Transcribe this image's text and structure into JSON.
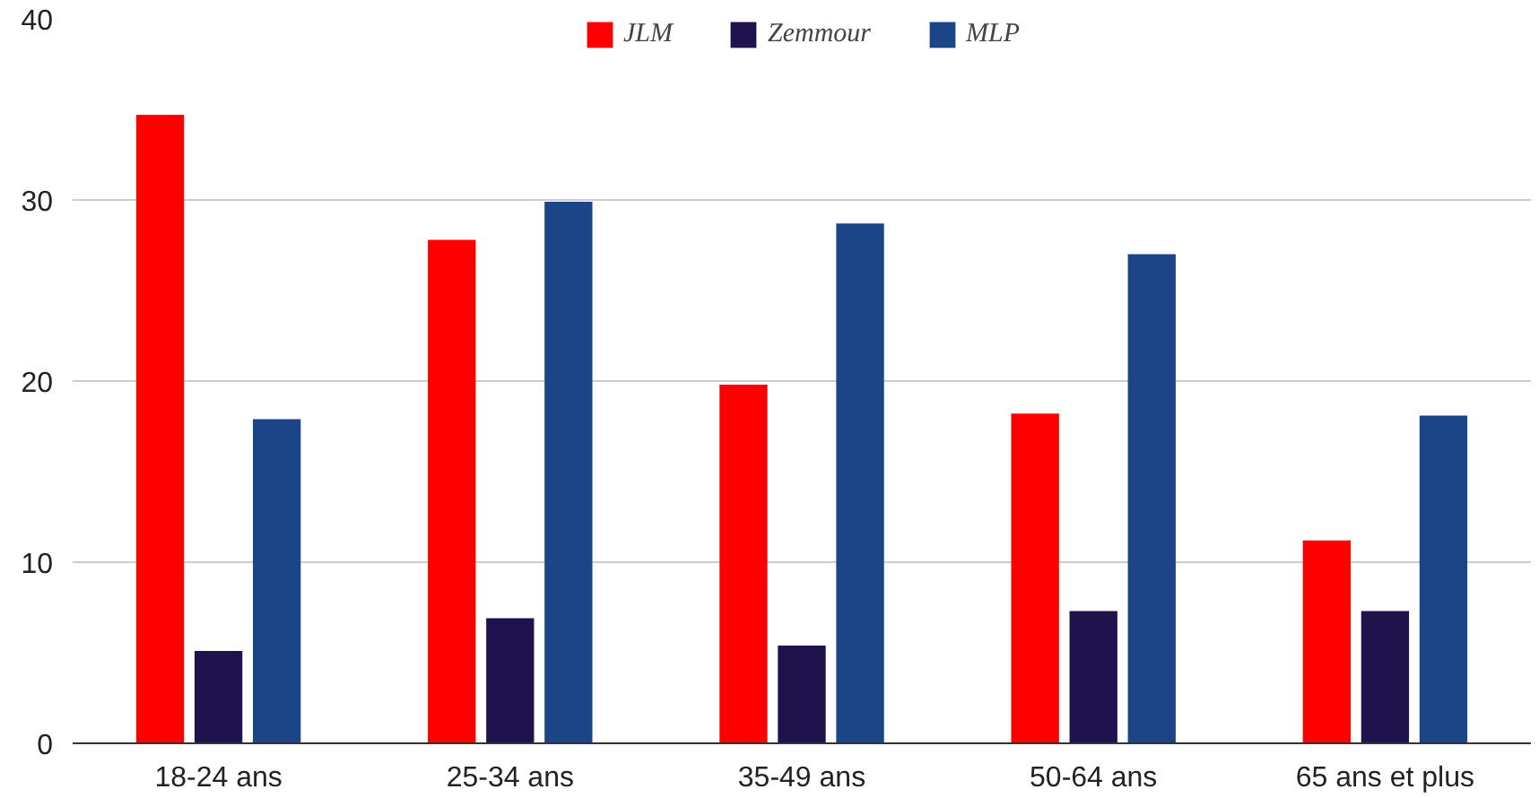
{
  "chart_data": {
    "type": "bar",
    "categories": [
      "18-24 ans",
      "25-34 ans",
      "35-49 ans",
      "50-64 ans",
      "65 ans et plus"
    ],
    "series": [
      {
        "name": "JLM",
        "color": "#ff0000",
        "values": [
          34.7,
          27.8,
          19.8,
          18.2,
          11.2
        ]
      },
      {
        "name": "Zemmour",
        "color": "#20124d",
        "values": [
          5.1,
          6.9,
          5.4,
          7.3,
          7.3
        ]
      },
      {
        "name": "MLP",
        "color": "#1c4587",
        "values": [
          17.9,
          29.9,
          28.7,
          27.0,
          18.1
        ]
      }
    ],
    "ylim": [
      0,
      40
    ],
    "yticks": [
      0,
      10,
      20,
      30,
      40
    ],
    "grid": "y",
    "legend": "top"
  }
}
